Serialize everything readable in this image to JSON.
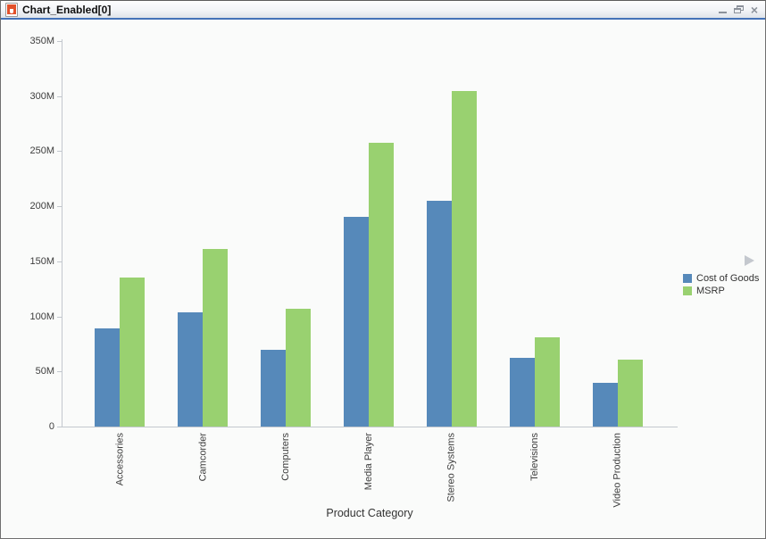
{
  "window": {
    "title": "Chart_Enabled[0]",
    "controls": {
      "close_glyph": "×"
    }
  },
  "chart_data": {
    "type": "bar",
    "title": "",
    "xlabel": "Product Category",
    "ylabel": "",
    "ylim": [
      0,
      350000000
    ],
    "value_unit": "M (millions USD)",
    "grid": false,
    "legend_position": "right",
    "categories": [
      "Accessories",
      "Camcorder",
      "Computers",
      "Media Player",
      "Stereo Systems",
      "Televisions",
      "Video Production"
    ],
    "series": [
      {
        "name": "Cost of Goods",
        "color": "#5689ba",
        "values_millions": [
          89,
          104,
          70,
          190,
          205,
          62,
          40
        ]
      },
      {
        "name": "MSRP",
        "color": "#99d170",
        "values_millions": [
          135,
          161,
          107,
          258,
          305,
          81,
          61
        ]
      }
    ],
    "y_ticks": [
      {
        "value": 0,
        "label": "0"
      },
      {
        "value": 50,
        "label": "50M"
      },
      {
        "value": 100,
        "label": "100M"
      },
      {
        "value": 150,
        "label": "150M"
      },
      {
        "value": 200,
        "label": "200M"
      },
      {
        "value": 250,
        "label": "250M"
      },
      {
        "value": 300,
        "label": "300M"
      },
      {
        "value": 350,
        "label": "350M"
      }
    ]
  },
  "colors": {
    "titlebar_accent": "#4472b8",
    "axis": "#c3c8ce",
    "background": "#fafbfa",
    "cost_of_goods": "#5689ba",
    "msrp": "#99d170"
  }
}
